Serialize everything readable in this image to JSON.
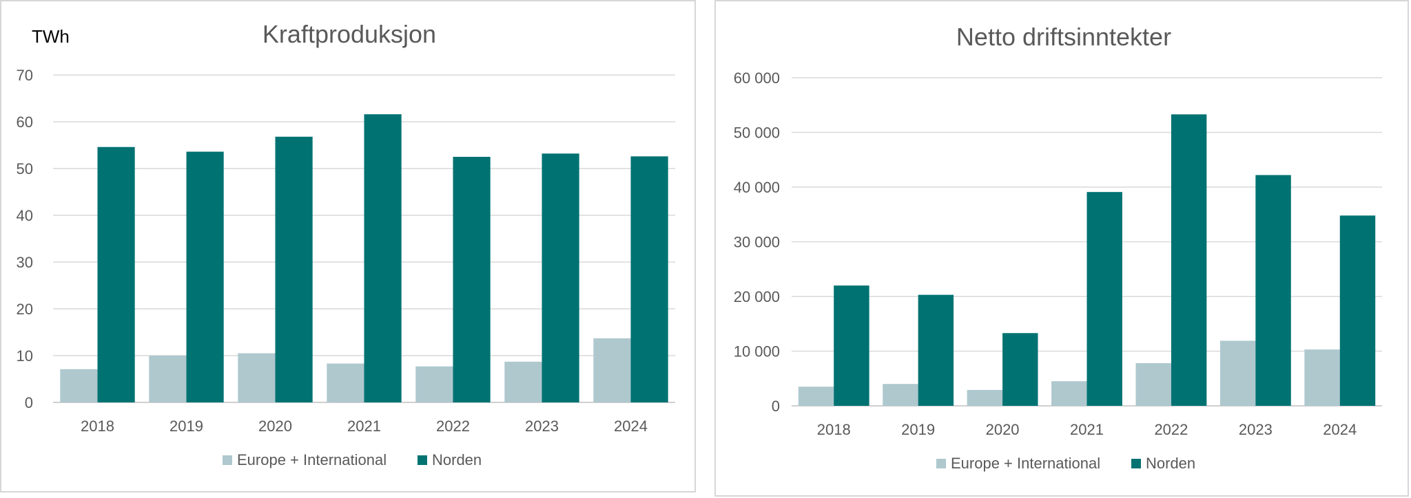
{
  "colors": {
    "europe": "#aec8ce",
    "norden": "#007272"
  },
  "chart_data": [
    {
      "type": "bar",
      "title": "Kraftproduksjon",
      "unit_label": "TWh",
      "categories": [
        "2018",
        "2019",
        "2020",
        "2021",
        "2022",
        "2023",
        "2024"
      ],
      "y_ticks": [
        "0",
        "10",
        "20",
        "30",
        "40",
        "50",
        "60",
        "70"
      ],
      "ylim": [
        0,
        70
      ],
      "grid": true,
      "legend_position": "bottom",
      "series": [
        {
          "name": "Europe + International",
          "values": [
            7.1,
            10.0,
            10.5,
            8.3,
            7.7,
            8.7,
            13.7
          ]
        },
        {
          "name": "Norden",
          "values": [
            54.6,
            53.6,
            56.8,
            61.6,
            52.5,
            53.2,
            52.6
          ]
        }
      ]
    },
    {
      "type": "bar",
      "title": "Netto driftsinntekter",
      "categories": [
        "2018",
        "2019",
        "2020",
        "2021",
        "2022",
        "2023",
        "2024"
      ],
      "y_ticks": [
        "0",
        "10 000",
        "20 000",
        "30 000",
        "40 000",
        "50 000",
        "60 000"
      ],
      "ylim": [
        0,
        60000
      ],
      "grid": true,
      "legend_position": "bottom",
      "series": [
        {
          "name": "Europe + International",
          "values": [
            3500,
            4000,
            2900,
            4500,
            7800,
            11900,
            10300
          ]
        },
        {
          "name": "Norden",
          "values": [
            22000,
            20300,
            13300,
            39100,
            53300,
            42200,
            34800
          ]
        }
      ]
    }
  ]
}
